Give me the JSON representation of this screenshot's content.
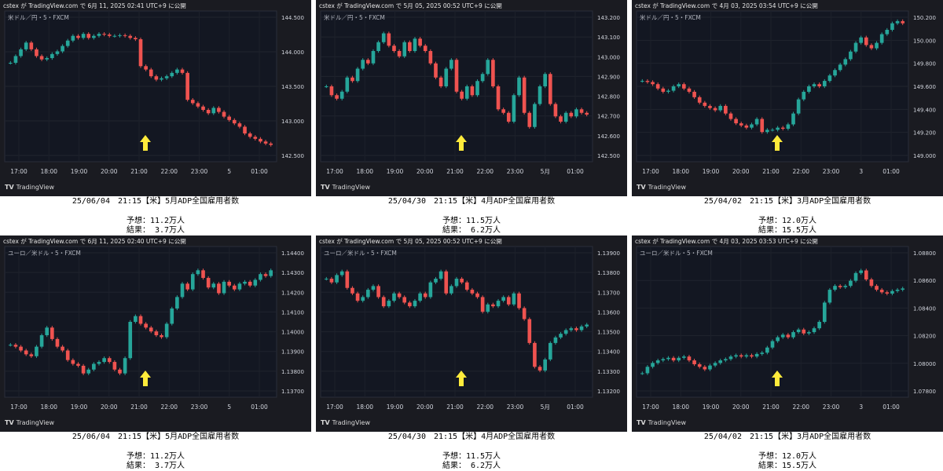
{
  "panels": [
    {
      "published": "cstex が TradingView.com で 6月 11, 2025 02:41 UTC+9 に公開",
      "symbol": "米ドル／円・5・FXCM",
      "y_ticks": [
        "144.500",
        "144.000",
        "143.500",
        "143.000",
        "142.500"
      ],
      "x_ticks": [
        "17:00",
        "18:00",
        "19:00",
        "20:00",
        "21:00",
        "22:00",
        "23:00",
        "5",
        "01:00"
      ],
      "brand": "TradingView",
      "caption_title": "25/06/04　21:15【米】5月ADP全国雇用者数",
      "caption_forecast": "予想：11.2万人",
      "caption_result": "結果： 3.7万人"
    },
    {
      "published": "cstex が TradingView.com で 5月 05, 2025 00:52 UTC+9 に公開",
      "symbol": "米ドル／円・5・FXCM",
      "y_ticks": [
        "143.200",
        "143.100",
        "143.000",
        "142.900",
        "142.800",
        "142.700",
        "142.600",
        "142.500"
      ],
      "x_ticks": [
        "17:00",
        "18:00",
        "19:00",
        "20:00",
        "21:00",
        "22:00",
        "23:00",
        "5月",
        "01:00"
      ],
      "brand": "TradingView",
      "caption_title": "25/04/30　21:15【米】4月ADP全国雇用者数",
      "caption_forecast": "予想：11.5万人",
      "caption_result": "結果： 6.2万人"
    },
    {
      "published": "cstex が TradingView.com で 4月 03, 2025 03:54 UTC+9 に公開",
      "symbol": "米ドル／円・5・FXCM",
      "y_ticks": [
        "150.200",
        "150.000",
        "149.800",
        "149.600",
        "149.400",
        "149.200",
        "149.000"
      ],
      "x_ticks": [
        "17:00",
        "18:00",
        "19:00",
        "20:00",
        "21:00",
        "22:00",
        "23:00",
        "3",
        "01:00"
      ],
      "brand": "TradingView",
      "caption_title": "25/04/02　21:15【米】3月ADP全国雇用者数",
      "caption_forecast": "予想：12.0万人",
      "caption_result": "結果：15.5万人"
    },
    {
      "published": "cstex が TradingView.com で 6月 11, 2025 02:40 UTC+9 に公開",
      "symbol": "ユーロ／米ドル・5・FXCM",
      "y_ticks": [
        "1.14400",
        "1.14300",
        "1.14200",
        "1.14100",
        "1.14000",
        "1.13900",
        "1.13800",
        "1.13700"
      ],
      "x_ticks": [
        "17:00",
        "18:00",
        "19:00",
        "20:00",
        "21:00",
        "22:00",
        "23:00",
        "5",
        "01:00"
      ],
      "brand": "TradingView",
      "caption_title": "25/06/04　21:15【米】5月ADP全国雇用者数",
      "caption_forecast": "予想：11.2万人",
      "caption_result": "結果： 3.7万人"
    },
    {
      "published": "cstex が TradingView.com で 5月 05, 2025 00:52 UTC+9 に公開",
      "symbol": "ユーロ／米ドル・5・FXCM",
      "y_ticks": [
        "1.13900",
        "1.13800",
        "1.13700",
        "1.13600",
        "1.13500",
        "1.13400",
        "1.13300",
        "1.13200"
      ],
      "x_ticks": [
        "17:00",
        "18:00",
        "19:00",
        "20:00",
        "21:00",
        "22:00",
        "23:00",
        "5月",
        "01:00"
      ],
      "brand": "TradingView",
      "caption_title": "25/04/30　21:15【米】4月ADP全国雇用者数",
      "caption_forecast": "予想：11.5万人",
      "caption_result": "結果： 6.2万人"
    },
    {
      "published": "cstex が TradingView.com で 4月 03, 2025 03:53 UTC+9 に公開",
      "symbol": "ユーロ／米ドル・5・FXCM",
      "y_ticks": [
        "1.08800",
        "1.08600",
        "1.08400",
        "1.08200",
        "1.08000",
        "1.07800"
      ],
      "x_ticks": [
        "17:00",
        "18:00",
        "19:00",
        "20:00",
        "21:00",
        "22:00",
        "23:00",
        "3",
        "01:00"
      ],
      "brand": "TradingView",
      "caption_title": "25/04/02　21:15【米】3月ADP全国雇用者数",
      "caption_forecast": "予想：12.0万人",
      "caption_result": "結果：15.5万人"
    }
  ],
  "chart_data": [
    {
      "type": "candlestick-line-approx",
      "symbol": "米ドル／円・5・FXCM",
      "ylim": [
        142.45,
        144.55
      ],
      "x": [
        "17:00",
        "18:00",
        "19:00",
        "20:00",
        "21:00",
        "22:00",
        "23:00",
        "5",
        "01:00"
      ],
      "close_path": [
        143.85,
        143.95,
        144.05,
        144.15,
        144.05,
        143.95,
        143.9,
        143.92,
        143.98,
        144.02,
        144.1,
        144.18,
        144.25,
        144.22,
        144.28,
        144.22,
        144.25,
        144.28,
        144.27,
        144.25,
        144.25,
        144.26,
        144.25,
        144.22,
        144.2,
        143.8,
        143.75,
        143.65,
        143.6,
        143.62,
        143.65,
        143.7,
        143.75,
        143.7,
        143.3,
        143.25,
        143.2,
        143.15,
        143.1,
        143.18,
        143.12,
        143.05,
        143.0,
        142.95,
        142.9,
        142.8,
        142.75,
        142.72,
        142.68,
        142.65,
        142.63
      ],
      "colors": {
        "up": "#26a69a",
        "down": "#ef5350"
      },
      "marker": "arrow at 21:15"
    },
    {
      "type": "candlestick-line-approx",
      "symbol": "米ドル／円・5・FXCM",
      "ylim": [
        142.45,
        143.25
      ],
      "x": [
        "17:00",
        "18:00",
        "19:00",
        "20:00",
        "21:00",
        "22:00",
        "23:00",
        "5月",
        "01:00"
      ],
      "close_path": [
        142.85,
        142.8,
        142.78,
        142.82,
        142.9,
        142.88,
        142.95,
        143.0,
        142.98,
        143.05,
        143.1,
        143.15,
        143.08,
        143.05,
        143.02,
        143.1,
        143.05,
        143.12,
        143.08,
        143.05,
        142.98,
        142.9,
        142.85,
        142.95,
        143.0,
        142.82,
        142.78,
        142.85,
        142.8,
        142.88,
        142.92,
        143.0,
        142.85,
        142.72,
        142.7,
        142.65,
        142.8,
        142.9,
        142.7,
        142.62,
        142.75,
        142.85,
        142.92,
        142.75,
        142.68,
        142.65,
        142.7,
        142.68,
        142.72,
        142.7,
        142.69
      ],
      "colors": {
        "up": "#26a69a",
        "down": "#ef5350"
      },
      "marker": "arrow at 21:15"
    },
    {
      "type": "candlestick-line-approx",
      "symbol": "米ドル／円・5・FXCM",
      "ylim": [
        148.95,
        150.25
      ],
      "x": [
        "17:00",
        "18:00",
        "19:00",
        "20:00",
        "21:00",
        "22:00",
        "23:00",
        "3",
        "01:00"
      ],
      "close_path": [
        149.65,
        149.64,
        149.62,
        149.58,
        149.55,
        149.56,
        149.6,
        149.62,
        149.58,
        149.55,
        149.5,
        149.45,
        149.42,
        149.4,
        149.38,
        149.42,
        149.35,
        149.3,
        149.26,
        149.24,
        149.22,
        149.25,
        149.3,
        149.18,
        149.2,
        149.2,
        149.22,
        149.21,
        149.25,
        149.35,
        149.48,
        149.55,
        149.6,
        149.62,
        149.6,
        149.65,
        149.7,
        149.75,
        149.8,
        149.85,
        149.92,
        150.0,
        150.05,
        149.98,
        149.95,
        150.0,
        150.08,
        150.12,
        150.18,
        150.2,
        150.18
      ],
      "colors": {
        "up": "#26a69a",
        "down": "#ef5350"
      },
      "marker": "arrow at 21:15"
    },
    {
      "type": "candlestick-line-approx",
      "symbol": "ユーロ／米ドル・5・FXCM",
      "ylim": [
        1.1368,
        1.1442
      ],
      "x": [
        "17:00",
        "18:00",
        "19:00",
        "20:00",
        "21:00",
        "22:00",
        "23:00",
        "5",
        "01:00"
      ],
      "close_path": [
        1.1393,
        1.1392,
        1.139,
        1.1388,
        1.1387,
        1.1392,
        1.1398,
        1.1402,
        1.1396,
        1.1392,
        1.139,
        1.1385,
        1.1383,
        1.1382,
        1.1378,
        1.138,
        1.1383,
        1.1384,
        1.1386,
        1.1384,
        1.138,
        1.1378,
        1.1386,
        1.1405,
        1.1408,
        1.1404,
        1.1402,
        1.14,
        1.1398,
        1.1397,
        1.1404,
        1.1412,
        1.1418,
        1.1425,
        1.1422,
        1.143,
        1.1432,
        1.1428,
        1.1423,
        1.1425,
        1.142,
        1.1426,
        1.1424,
        1.1422,
        1.1425,
        1.1426,
        1.1424,
        1.1427,
        1.143,
        1.1429,
        1.1432
      ],
      "colors": {
        "up": "#26a69a",
        "down": "#ef5350"
      },
      "marker": "arrow at 21:15"
    },
    {
      "type": "candlestick-line-approx",
      "symbol": "ユーロ／米ドル・5・FXCM",
      "ylim": [
        1.1318,
        1.1395
      ],
      "x": [
        "17:00",
        "18:00",
        "19:00",
        "20:00",
        "21:00",
        "22:00",
        "23:00",
        "5月",
        "01:00"
      ],
      "close_path": [
        1.138,
        1.1378,
        1.1382,
        1.1384,
        1.1375,
        1.1372,
        1.1368,
        1.137,
        1.1374,
        1.1376,
        1.137,
        1.1365,
        1.1368,
        1.1372,
        1.137,
        1.1367,
        1.1365,
        1.1368,
        1.1372,
        1.137,
        1.1378,
        1.138,
        1.1384,
        1.1372,
        1.1376,
        1.138,
        1.1378,
        1.1374,
        1.1372,
        1.137,
        1.1362,
        1.1366,
        1.1365,
        1.1368,
        1.137,
        1.1366,
        1.1372,
        1.1364,
        1.1358,
        1.1345,
        1.1332,
        1.133,
        1.1336,
        1.1345,
        1.1348,
        1.135,
        1.1352,
        1.1353,
        1.1352,
        1.1354,
        1.1355
      ],
      "colors": {
        "up": "#26a69a",
        "down": "#ef5350"
      },
      "marker": "arrow at 21:15"
    },
    {
      "type": "candlestick-line-approx",
      "symbol": "ユーロ／米ドル・5・FXCM",
      "ylim": [
        1.0775,
        1.0885
      ],
      "x": [
        "17:00",
        "18:00",
        "19:00",
        "20:00",
        "21:00",
        "22:00",
        "23:00",
        "3",
        "01:00"
      ],
      "close_path": [
        1.079,
        1.0795,
        1.0798,
        1.08,
        1.0801,
        1.0802,
        1.08,
        1.0802,
        1.0803,
        1.08,
        1.0797,
        1.0795,
        1.0793,
        1.0796,
        1.0798,
        1.08,
        1.0801,
        1.0803,
        1.0804,
        1.0803,
        1.0804,
        1.0803,
        1.0805,
        1.0806,
        1.081,
        1.0815,
        1.0818,
        1.082,
        1.0818,
        1.0822,
        1.0824,
        1.0821,
        1.0822,
        1.0825,
        1.083,
        1.0845,
        1.0855,
        1.0858,
        1.0857,
        1.0858,
        1.0862,
        1.0868,
        1.087,
        1.0863,
        1.0858,
        1.0855,
        1.0853,
        1.0852,
        1.0854,
        1.0855,
        1.0856
      ],
      "colors": {
        "up": "#26a69a",
        "down": "#ef5350"
      },
      "marker": "arrow at 21:15"
    }
  ]
}
